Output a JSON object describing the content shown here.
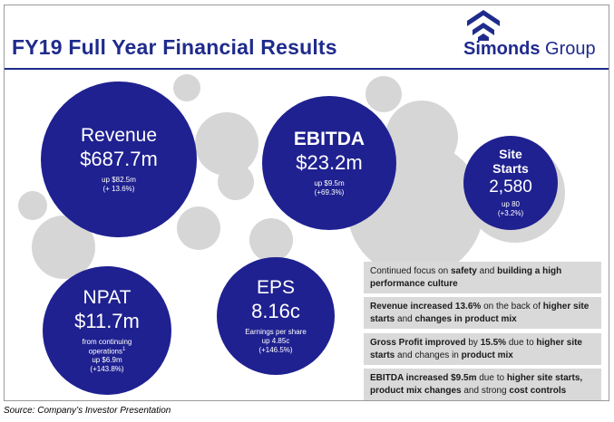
{
  "title": "FY19 Full Year Financial Results",
  "brand": {
    "name_bold": "Simonds",
    "name_rest": " Group",
    "color": "#1f2b8c"
  },
  "colors": {
    "bubble": "#1f2190",
    "gray_circle": "#d6d6d6",
    "note_bg": "#d9d9d9"
  },
  "metrics": {
    "revenue": {
      "label": "Revenue",
      "value": "$687.7m",
      "change": "up $82.5m",
      "pct": "(+ 13.6%)"
    },
    "ebitda": {
      "label": "EBITDA",
      "value": "$23.2m",
      "change": "up $9.5m",
      "pct": "(+69.3%)"
    },
    "site_starts": {
      "label_1": "Site",
      "label_2": "Starts",
      "value": "2,580",
      "change": "up 80",
      "pct": "(+3.2%)"
    },
    "npat": {
      "label": "NPAT",
      "value": "$11.7m",
      "note_1": "from continuing",
      "note_2": "operations",
      "footnote_mark": "1",
      "change": "up $6.9m",
      "pct": "(+143.8%)"
    },
    "eps": {
      "label": "EPS",
      "value": "8.16c",
      "note": "Earnings per share",
      "change": "up 4.85c",
      "pct": "(+146.5%)"
    }
  },
  "notes": [
    [
      "Continued focus on ",
      "safety",
      " and ",
      "building a high performance culture",
      ""
    ],
    [
      "Revenue increased 13.6%",
      " on the back of ",
      "higher site starts",
      " and ",
      "changes in product mix"
    ],
    [
      "Gross Profit improved",
      " by ",
      "15.5%",
      " due to ",
      "higher site starts",
      " and changes in ",
      "product mix"
    ],
    [
      "EBITDA increased $9.5m",
      " due to ",
      "higher site starts,",
      " ",
      "product mix changes",
      " and strong ",
      "cost controls"
    ]
  ],
  "source": "Source: Company’s Investor Presentation"
}
